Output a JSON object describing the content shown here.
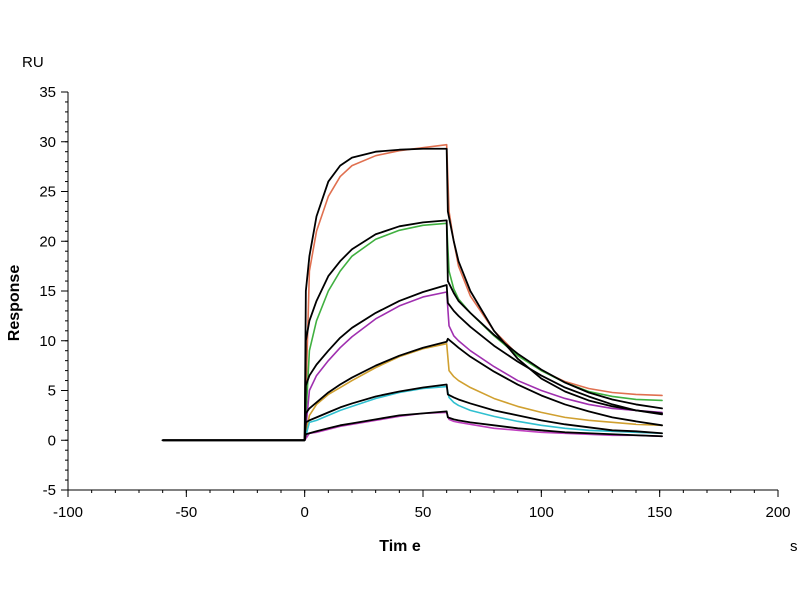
{
  "chart_data": {
    "type": "line",
    "title": "",
    "xlabel": "Tim e",
    "ylabel": "Response",
    "x_unit": "s",
    "y_unit": "RU",
    "xlim": [
      -100,
      200
    ],
    "ylim": [
      -5,
      35
    ],
    "x_ticks": [
      -100,
      -50,
      0,
      50,
      100,
      150,
      200
    ],
    "y_ticks": [
      -5,
      0,
      5,
      10,
      15,
      20,
      25,
      30,
      35
    ],
    "x_tick_labels": [
      "-100",
      "-50",
      "0",
      "50",
      "100",
      "150",
      "200"
    ],
    "y_tick_labels": [
      "-5",
      "0",
      "5",
      "10",
      "15",
      "20",
      "25",
      "30",
      "35"
    ],
    "grid": false,
    "legend": "none",
    "measured_series": [
      {
        "color": "#E07050",
        "points": [
          [
            -60,
            0
          ],
          [
            0,
            0
          ],
          [
            2,
            17
          ],
          [
            5,
            21
          ],
          [
            10,
            24.5
          ],
          [
            15,
            26.5
          ],
          [
            20,
            27.6
          ],
          [
            30,
            28.6
          ],
          [
            40,
            29.1
          ],
          [
            50,
            29.4
          ],
          [
            60,
            29.7
          ],
          [
            61,
            23
          ],
          [
            63,
            20
          ],
          [
            65,
            17.5
          ],
          [
            70,
            14.5
          ],
          [
            80,
            11
          ],
          [
            90,
            8.6
          ],
          [
            100,
            7
          ],
          [
            110,
            5.9
          ],
          [
            120,
            5.2
          ],
          [
            130,
            4.8
          ],
          [
            140,
            4.6
          ],
          [
            151,
            4.5
          ]
        ]
      },
      {
        "color": "#40B040",
        "points": [
          [
            -60,
            0
          ],
          [
            0,
            0
          ],
          [
            2,
            9
          ],
          [
            5,
            12
          ],
          [
            10,
            15
          ],
          [
            15,
            17
          ],
          [
            20,
            18.5
          ],
          [
            30,
            20.2
          ],
          [
            40,
            21.1
          ],
          [
            50,
            21.6
          ],
          [
            60,
            21.8
          ],
          [
            61,
            17
          ],
          [
            63,
            15.2
          ],
          [
            65,
            14.2
          ],
          [
            70,
            12.8
          ],
          [
            80,
            10.5
          ],
          [
            90,
            8.5
          ],
          [
            100,
            7
          ],
          [
            110,
            5.8
          ],
          [
            120,
            4.9
          ],
          [
            130,
            4.4
          ],
          [
            140,
            4.1
          ],
          [
            151,
            4
          ]
        ]
      },
      {
        "color": "#A030B0",
        "points": [
          [
            -60,
            0
          ],
          [
            0,
            0
          ],
          [
            2,
            5
          ],
          [
            5,
            6.5
          ],
          [
            10,
            8
          ],
          [
            15,
            9.3
          ],
          [
            20,
            10.4
          ],
          [
            30,
            12.2
          ],
          [
            40,
            13.5
          ],
          [
            50,
            14.4
          ],
          [
            60,
            14.9
          ],
          [
            61,
            11.5
          ],
          [
            63,
            10.5
          ],
          [
            65,
            10
          ],
          [
            70,
            9
          ],
          [
            80,
            7.4
          ],
          [
            90,
            6
          ],
          [
            100,
            5
          ],
          [
            110,
            4.2
          ],
          [
            120,
            3.6
          ],
          [
            130,
            3.2
          ],
          [
            140,
            3
          ],
          [
            151,
            2.8
          ]
        ]
      },
      {
        "color": "#D0A030",
        "points": [
          [
            -60,
            0
          ],
          [
            0,
            0
          ],
          [
            2,
            2.5
          ],
          [
            5,
            3.6
          ],
          [
            10,
            4.6
          ],
          [
            15,
            5.3
          ],
          [
            20,
            6
          ],
          [
            30,
            7.3
          ],
          [
            40,
            8.4
          ],
          [
            50,
            9.2
          ],
          [
            60,
            9.7
          ],
          [
            61,
            7
          ],
          [
            63,
            6.4
          ],
          [
            65,
            6
          ],
          [
            70,
            5.3
          ],
          [
            80,
            4.2
          ],
          [
            90,
            3.4
          ],
          [
            100,
            2.8
          ],
          [
            110,
            2.3
          ],
          [
            120,
            2
          ],
          [
            130,
            1.8
          ],
          [
            140,
            1.6
          ],
          [
            151,
            1.5
          ]
        ]
      },
      {
        "color": "#30C0D0",
        "points": [
          [
            -60,
            0
          ],
          [
            0,
            0
          ],
          [
            2,
            1.8
          ],
          [
            5,
            2
          ],
          [
            10,
            2.5
          ],
          [
            15,
            3
          ],
          [
            20,
            3.4
          ],
          [
            30,
            4.2
          ],
          [
            40,
            4.8
          ],
          [
            50,
            5.2
          ],
          [
            60,
            5.4
          ],
          [
            61,
            4.3
          ],
          [
            63,
            3.8
          ],
          [
            65,
            3.5
          ],
          [
            70,
            3
          ],
          [
            80,
            2.4
          ],
          [
            90,
            1.9
          ],
          [
            100,
            1.5
          ],
          [
            110,
            1.2
          ],
          [
            120,
            1
          ],
          [
            130,
            0.9
          ],
          [
            140,
            0.8
          ],
          [
            151,
            0.7
          ]
        ]
      },
      {
        "color": "#C040C0",
        "points": [
          [
            -60,
            0
          ],
          [
            0,
            0
          ],
          [
            2,
            0.7
          ],
          [
            5,
            0.8
          ],
          [
            10,
            1.1
          ],
          [
            15,
            1.4
          ],
          [
            20,
            1.6
          ],
          [
            30,
            2
          ],
          [
            40,
            2.4
          ],
          [
            50,
            2.7
          ],
          [
            60,
            2.8
          ],
          [
            61,
            2.1
          ],
          [
            63,
            1.9
          ],
          [
            65,
            1.8
          ],
          [
            70,
            1.6
          ],
          [
            80,
            1.2
          ],
          [
            90,
            1
          ],
          [
            100,
            0.8
          ],
          [
            110,
            0.7
          ],
          [
            120,
            0.6
          ],
          [
            130,
            0.5
          ],
          [
            140,
            0.5
          ],
          [
            151,
            0.4
          ]
        ]
      }
    ],
    "fit_series": [
      {
        "color": "#000000",
        "points": [
          [
            -60,
            0
          ],
          [
            0,
            0
          ],
          [
            0.5,
            15
          ],
          [
            2,
            18.5
          ],
          [
            5,
            22.5
          ],
          [
            10,
            26
          ],
          [
            15,
            27.6
          ],
          [
            20,
            28.4
          ],
          [
            30,
            29
          ],
          [
            40,
            29.2
          ],
          [
            50,
            29.3
          ],
          [
            60,
            29.3
          ],
          [
            60.5,
            23
          ],
          [
            63,
            20
          ],
          [
            65,
            18
          ],
          [
            70,
            15
          ],
          [
            80,
            11
          ],
          [
            90,
            8.2
          ],
          [
            100,
            6.2
          ],
          [
            110,
            4.9
          ],
          [
            120,
            4
          ],
          [
            130,
            3.4
          ],
          [
            140,
            3
          ],
          [
            151,
            2.7
          ]
        ]
      },
      {
        "color": "#000000",
        "points": [
          [
            -60,
            0
          ],
          [
            0,
            0
          ],
          [
            0.5,
            10
          ],
          [
            2,
            12
          ],
          [
            5,
            14
          ],
          [
            10,
            16.5
          ],
          [
            15,
            18
          ],
          [
            20,
            19.2
          ],
          [
            30,
            20.7
          ],
          [
            40,
            21.5
          ],
          [
            50,
            21.9
          ],
          [
            60,
            22.1
          ],
          [
            60.5,
            16
          ],
          [
            63,
            14.8
          ],
          [
            65,
            14
          ],
          [
            70,
            12.8
          ],
          [
            80,
            10.6
          ],
          [
            90,
            8.7
          ],
          [
            100,
            7.1
          ],
          [
            110,
            5.8
          ],
          [
            120,
            4.8
          ],
          [
            130,
            4.1
          ],
          [
            140,
            3.6
          ],
          [
            151,
            3.2
          ]
        ]
      },
      {
        "color": "#000000",
        "points": [
          [
            -60,
            0
          ],
          [
            0,
            0
          ],
          [
            0.5,
            5.5
          ],
          [
            2,
            6.5
          ],
          [
            5,
            7.6
          ],
          [
            10,
            9
          ],
          [
            15,
            10.3
          ],
          [
            20,
            11.3
          ],
          [
            30,
            12.8
          ],
          [
            40,
            14
          ],
          [
            50,
            14.9
          ],
          [
            60,
            15.6
          ],
          [
            60.5,
            13.8
          ],
          [
            63,
            13
          ],
          [
            65,
            12.5
          ],
          [
            70,
            11.4
          ],
          [
            80,
            9.5
          ],
          [
            90,
            7.9
          ],
          [
            100,
            6.5
          ],
          [
            110,
            5.3
          ],
          [
            120,
            4.4
          ],
          [
            130,
            3.6
          ],
          [
            140,
            3
          ],
          [
            151,
            2.6
          ]
        ]
      },
      {
        "color": "#000000",
        "points": [
          [
            -60,
            0
          ],
          [
            0,
            0
          ],
          [
            0.5,
            2.7
          ],
          [
            2,
            3.2
          ],
          [
            5,
            3.8
          ],
          [
            10,
            4.8
          ],
          [
            15,
            5.6
          ],
          [
            20,
            6.3
          ],
          [
            30,
            7.5
          ],
          [
            40,
            8.5
          ],
          [
            50,
            9.3
          ],
          [
            60,
            9.9
          ],
          [
            60.5,
            10.2
          ],
          [
            63,
            9.7
          ],
          [
            65,
            9.3
          ],
          [
            70,
            8.4
          ],
          [
            80,
            6.9
          ],
          [
            90,
            5.6
          ],
          [
            100,
            4.5
          ],
          [
            110,
            3.6
          ],
          [
            120,
            2.9
          ],
          [
            130,
            2.3
          ],
          [
            140,
            1.9
          ],
          [
            151,
            1.5
          ]
        ]
      },
      {
        "color": "#000000",
        "points": [
          [
            -60,
            0
          ],
          [
            0,
            0
          ],
          [
            0.5,
            1.8
          ],
          [
            2,
            2
          ],
          [
            5,
            2.3
          ],
          [
            10,
            2.8
          ],
          [
            15,
            3.3
          ],
          [
            20,
            3.7
          ],
          [
            30,
            4.4
          ],
          [
            40,
            4.9
          ],
          [
            50,
            5.3
          ],
          [
            60,
            5.6
          ],
          [
            60.5,
            4.6
          ],
          [
            63,
            4.3
          ],
          [
            65,
            4.1
          ],
          [
            70,
            3.7
          ],
          [
            80,
            3
          ],
          [
            90,
            2.5
          ],
          [
            100,
            2
          ],
          [
            110,
            1.6
          ],
          [
            120,
            1.3
          ],
          [
            130,
            1
          ],
          [
            140,
            0.9
          ],
          [
            151,
            0.7
          ]
        ]
      },
      {
        "color": "#000000",
        "points": [
          [
            -60,
            0
          ],
          [
            0,
            0
          ],
          [
            0.5,
            0.6
          ],
          [
            2,
            0.7
          ],
          [
            5,
            0.9
          ],
          [
            10,
            1.2
          ],
          [
            15,
            1.5
          ],
          [
            20,
            1.7
          ],
          [
            30,
            2.1
          ],
          [
            40,
            2.5
          ],
          [
            50,
            2.7
          ],
          [
            60,
            2.9
          ],
          [
            60.5,
            2.3
          ],
          [
            63,
            2.1
          ],
          [
            65,
            2
          ],
          [
            70,
            1.8
          ],
          [
            80,
            1.5
          ],
          [
            90,
            1.2
          ],
          [
            100,
            1
          ],
          [
            110,
            0.8
          ],
          [
            120,
            0.7
          ],
          [
            130,
            0.6
          ],
          [
            140,
            0.5
          ],
          [
            151,
            0.4
          ]
        ]
      }
    ]
  }
}
